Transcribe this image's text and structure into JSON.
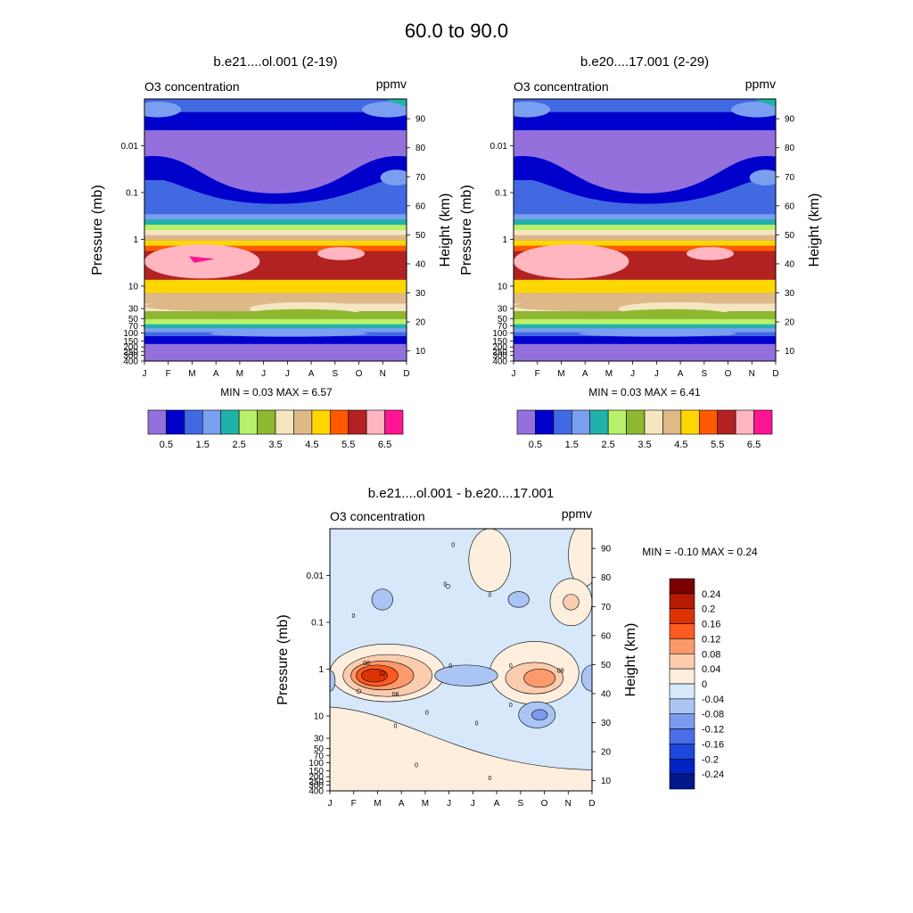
{
  "figure_title": "60.0 to  90.0",
  "chart_data": [
    {
      "type": "filled-contour",
      "title": "b.e21....ol.001 (2-19)",
      "left_label": "O3 concentration",
      "right_label": "ppmv",
      "xlabel": "",
      "ylabel": "Pressure (mb)",
      "ylabel_right": "Height (km)",
      "x_ticks": [
        "J",
        "F",
        "M",
        "A",
        "M",
        "J",
        "J",
        "A",
        "S",
        "O",
        "N",
        "D"
      ],
      "y_ticks": [
        "0.01",
        "0.1",
        "1",
        "10",
        "30",
        "50",
        "70",
        "100",
        "150",
        "200",
        "250",
        "300",
        "400"
      ],
      "y_ticks_right": [
        "90",
        "80",
        "70",
        "60",
        "50",
        "40",
        "30",
        "20",
        "10"
      ],
      "ylim_mb": [
        400,
        0.001
      ],
      "stats_text": "MIN =   0.03  MAX =   6.57",
      "min": 0.03,
      "max": 6.57,
      "colorbar": {
        "labels": [
          "0.5",
          "1.5",
          "2.5",
          "3.5",
          "4.5",
          "5.5",
          "6.5"
        ],
        "levels": [
          0.5,
          1,
          1.5,
          2,
          2.5,
          3,
          3.5,
          4,
          4.5,
          5,
          5.5,
          6,
          6.5
        ],
        "colors": [
          "#9370db",
          "#0000cd",
          "#4169e1",
          "#7b9ff0",
          "#20b2aa",
          "#b8f06a",
          "#8db82f",
          "#f5e6c0",
          "#deb887",
          "#ffd700",
          "#ff5a00",
          "#b22222",
          "#ffb6c1",
          "#ff1493"
        ]
      }
    },
    {
      "type": "filled-contour",
      "title": "b.e20....17.001 (2-29)",
      "left_label": "O3 concentration",
      "right_label": "ppmv",
      "xlabel": "",
      "ylabel": "Pressure (mb)",
      "ylabel_right": "Height (km)",
      "x_ticks": [
        "J",
        "F",
        "M",
        "A",
        "M",
        "J",
        "J",
        "A",
        "S",
        "O",
        "N",
        "D"
      ],
      "y_ticks": [
        "0.01",
        "0.1",
        "1",
        "10",
        "30",
        "50",
        "70",
        "100",
        "150",
        "200",
        "250",
        "300",
        "400"
      ],
      "y_ticks_right": [
        "90",
        "80",
        "70",
        "60",
        "50",
        "40",
        "30",
        "20",
        "10"
      ],
      "ylim_mb": [
        400,
        0.001
      ],
      "stats_text": "MIN =   0.03  MAX =   6.41",
      "min": 0.03,
      "max": 6.41,
      "colorbar": {
        "labels": [
          "0.5",
          "1.5",
          "2.5",
          "3.5",
          "4.5",
          "5.5",
          "6.5"
        ],
        "levels": [
          0.5,
          1,
          1.5,
          2,
          2.5,
          3,
          3.5,
          4,
          4.5,
          5,
          5.5,
          6,
          6.5
        ],
        "colors": [
          "#9370db",
          "#0000cd",
          "#4169e1",
          "#7b9ff0",
          "#20b2aa",
          "#b8f06a",
          "#8db82f",
          "#f5e6c0",
          "#deb887",
          "#ffd700",
          "#ff5a00",
          "#b22222",
          "#ffb6c1",
          "#ff1493"
        ]
      }
    },
    {
      "type": "filled-contour",
      "title": "b.e21....ol.001 - b.e20....17.001",
      "left_label": "O3 concentration",
      "right_label": "ppmv",
      "xlabel": "",
      "ylabel": "Pressure (mb)",
      "ylabel_right": "Height (km)",
      "x_ticks": [
        "J",
        "F",
        "M",
        "A",
        "M",
        "J",
        "J",
        "A",
        "S",
        "O",
        "N",
        "D"
      ],
      "y_ticks": [
        "0.01",
        "0.1",
        "1",
        "10",
        "30",
        "50",
        "70",
        "100",
        "150",
        "200",
        "250",
        "300",
        "400"
      ],
      "y_ticks_right": [
        "90",
        "80",
        "70",
        "60",
        "50",
        "40",
        "30",
        "20",
        "10"
      ],
      "ylim_mb": [
        400,
        0.001
      ],
      "stats_text": "MIN =  -0.10  MAX =   0.24",
      "min": -0.1,
      "max": 0.24,
      "contour_labels": [
        "0",
        "08",
        "12",
        "08",
        "0",
        "0",
        "0",
        "0",
        "0",
        "0",
        "0",
        "0",
        "0",
        "0",
        "0",
        "08"
      ],
      "colorbar": {
        "labels": [
          "0.24",
          "0.2",
          "0.16",
          "0.12",
          "0.08",
          "0.04",
          "0",
          "-0.04",
          "-0.08",
          "-0.12",
          "-0.16",
          "-0.2",
          "-0.24"
        ],
        "colors": [
          "#7a0000",
          "#b51b00",
          "#dd3300",
          "#ff5a20",
          "#fb9a6a",
          "#fcccae",
          "#fdeedd",
          "#d6e8fa",
          "#aac4f4",
          "#7d9bee",
          "#4a6ee8",
          "#1b47dc",
          "#0024c0",
          "#00188c"
        ]
      }
    }
  ]
}
